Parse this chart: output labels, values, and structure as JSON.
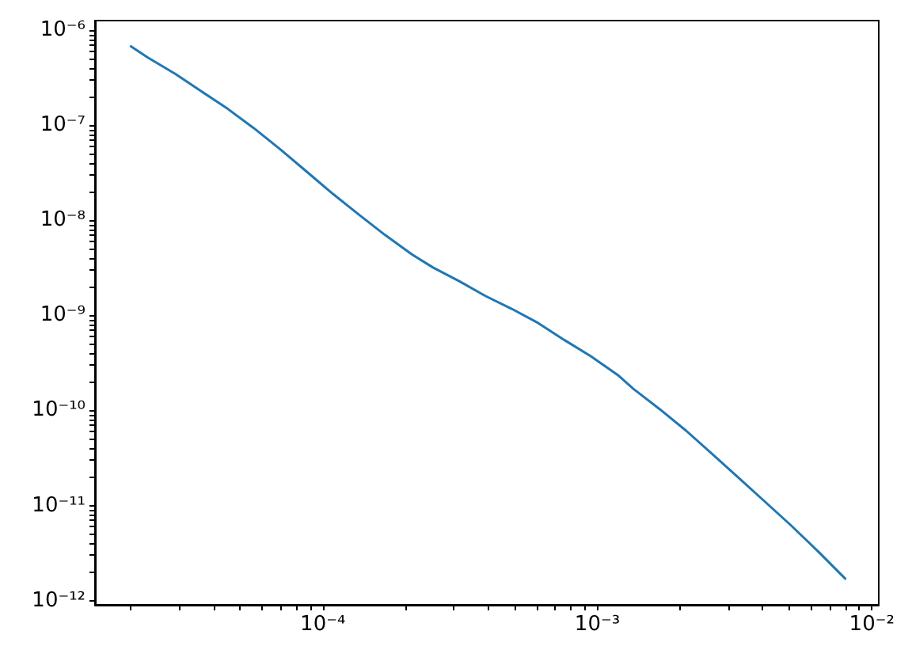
{
  "chart_data": {
    "type": "line",
    "log": "xy",
    "x": [
      2e-05,
      2.3e-05,
      2.9e-05,
      3.6e-05,
      4.5e-05,
      5.6e-05,
      7e-05,
      8.7e-05,
      0.000109,
      0.000136,
      0.000169,
      0.000211,
      0.000252,
      0.000314,
      0.000392,
      0.000489,
      0.00061,
      0.00076,
      0.00095,
      0.00119,
      0.00135,
      0.00169,
      0.00211,
      0.00263,
      0.00328,
      0.00409,
      0.0051,
      0.0064,
      0.008
    ],
    "series": [
      {
        "color": "#1f77b4",
        "values": [
          6.8e-07,
          5.2e-07,
          3.5e-07,
          2.3e-07,
          1.5e-07,
          9.4e-08,
          5.6e-08,
          3.3e-08,
          1.9e-08,
          1.14e-08,
          7e-09,
          4.4e-09,
          3.2e-09,
          2.3e-09,
          1.6e-09,
          1.17e-09,
          8.3e-10,
          5.5e-10,
          3.7e-10,
          2.35e-10,
          1.7e-10,
          1.03e-10,
          6.1e-11,
          3.45e-11,
          1.94e-11,
          1.09e-11,
          6.1e-12,
          3.25e-12,
          1.7e-12
        ]
      }
    ],
    "xlim": [
      1.48e-05,
      0.0106
    ],
    "xticks": [
      {
        "value": 2e-05,
        "label": null
      },
      {
        "value": 3e-05,
        "label": null
      },
      {
        "value": 4e-05,
        "label": null
      },
      {
        "value": 5e-05,
        "label": null
      },
      {
        "value": 6e-05,
        "label": null
      },
      {
        "value": 7e-05,
        "label": null
      },
      {
        "value": 8e-05,
        "label": null
      },
      {
        "value": 9e-05,
        "label": null
      },
      {
        "value": 0.0001,
        "label": "10⁻⁴"
      },
      {
        "value": 0.0002,
        "label": null
      },
      {
        "value": 0.0003,
        "label": null
      },
      {
        "value": 0.0004,
        "label": null
      },
      {
        "value": 0.0005,
        "label": null
      },
      {
        "value": 0.0006,
        "label": null
      },
      {
        "value": 0.0007,
        "label": null
      },
      {
        "value": 0.0008,
        "label": null
      },
      {
        "value": 0.0009,
        "label": null
      },
      {
        "value": 0.001,
        "label": "10⁻³"
      },
      {
        "value": 0.002,
        "label": null
      },
      {
        "value": 0.003,
        "label": null
      },
      {
        "value": 0.004,
        "label": null
      },
      {
        "value": 0.005,
        "label": null
      },
      {
        "value": 0.006,
        "label": null
      },
      {
        "value": 0.007,
        "label": null
      },
      {
        "value": 0.008,
        "label": null
      },
      {
        "value": 0.009,
        "label": null
      },
      {
        "value": 0.01,
        "label": "10⁻²"
      }
    ],
    "ylim": [
      9e-13,
      1.27e-06
    ],
    "yticks": [
      {
        "value": 1e-12,
        "label": "10⁻¹²"
      },
      {
        "value": 2e-12,
        "label": null
      },
      {
        "value": 3e-12,
        "label": null
      },
      {
        "value": 4e-12,
        "label": null
      },
      {
        "value": 5e-12,
        "label": null
      },
      {
        "value": 6e-12,
        "label": null
      },
      {
        "value": 7e-12,
        "label": null
      },
      {
        "value": 8e-12,
        "label": null
      },
      {
        "value": 9e-12,
        "label": null
      },
      {
        "value": 1e-11,
        "label": "10⁻¹¹"
      },
      {
        "value": 2e-11,
        "label": null
      },
      {
        "value": 3e-11,
        "label": null
      },
      {
        "value": 4e-11,
        "label": null
      },
      {
        "value": 5e-11,
        "label": null
      },
      {
        "value": 6e-11,
        "label": null
      },
      {
        "value": 7e-11,
        "label": null
      },
      {
        "value": 8e-11,
        "label": null
      },
      {
        "value": 9e-11,
        "label": null
      },
      {
        "value": 1e-10,
        "label": "10⁻¹⁰"
      },
      {
        "value": 2e-10,
        "label": null
      },
      {
        "value": 3e-10,
        "label": null
      },
      {
        "value": 4e-10,
        "label": null
      },
      {
        "value": 5e-10,
        "label": null
      },
      {
        "value": 6e-10,
        "label": null
      },
      {
        "value": 7e-10,
        "label": null
      },
      {
        "value": 8e-10,
        "label": null
      },
      {
        "value": 9e-10,
        "label": null
      },
      {
        "value": 1e-09,
        "label": "10⁻⁹"
      },
      {
        "value": 2e-09,
        "label": null
      },
      {
        "value": 3e-09,
        "label": null
      },
      {
        "value": 4e-09,
        "label": null
      },
      {
        "value": 5e-09,
        "label": null
      },
      {
        "value": 6e-09,
        "label": null
      },
      {
        "value": 7e-09,
        "label": null
      },
      {
        "value": 8e-09,
        "label": null
      },
      {
        "value": 9e-09,
        "label": null
      },
      {
        "value": 1e-08,
        "label": "10⁻⁸"
      },
      {
        "value": 2e-08,
        "label": null
      },
      {
        "value": 3e-08,
        "label": null
      },
      {
        "value": 4e-08,
        "label": null
      },
      {
        "value": 5e-08,
        "label": null
      },
      {
        "value": 6e-08,
        "label": null
      },
      {
        "value": 7e-08,
        "label": null
      },
      {
        "value": 8e-08,
        "label": null
      },
      {
        "value": 9e-08,
        "label": null
      },
      {
        "value": 1e-07,
        "label": "10⁻⁷"
      },
      {
        "value": 2e-07,
        "label": null
      },
      {
        "value": 3e-07,
        "label": null
      },
      {
        "value": 4e-07,
        "label": null
      },
      {
        "value": 5e-07,
        "label": null
      },
      {
        "value": 6e-07,
        "label": null
      },
      {
        "value": 7e-07,
        "label": null
      },
      {
        "value": 8e-07,
        "label": null
      },
      {
        "value": 9e-07,
        "label": null
      },
      {
        "value": 1e-06,
        "label": "10⁻⁶"
      }
    ]
  }
}
